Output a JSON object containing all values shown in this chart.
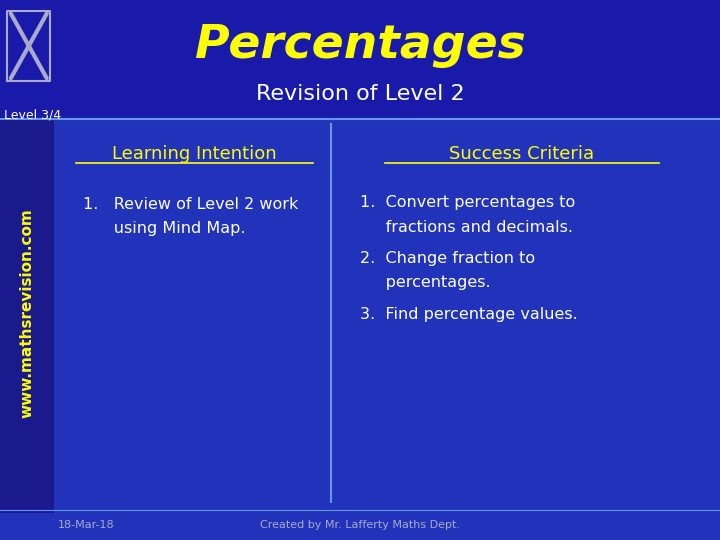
{
  "bg_color": "#1a1a8c",
  "body_bg": "#2233bb",
  "title": "Percentages",
  "subtitle": "Revision of Level 2",
  "level_label": "Level 3/4",
  "title_color": "#ffff00",
  "subtitle_color": "#ffffff",
  "level_color": "#ffffff",
  "left_heading": "Learning Intention",
  "left_heading_color": "#ffff00",
  "left_item_line1": "1.   Review of Level 2 work",
  "left_item_line2": "      using Mind Map.",
  "left_item_color": "#ffffff",
  "right_heading": "Success Criteria",
  "right_heading_color": "#ffff00",
  "right_item1_line1": "1.  Convert percentages to",
  "right_item1_line2": "     fractions and decimals.",
  "right_item2_line1": "2.  Change fraction to",
  "right_item2_line2": "     percentages.",
  "right_item3": "3.  Find percentage values.",
  "right_item_color": "#ffffff",
  "footer_date": "18-Mar-18",
  "footer_credit": "Created by Mr. Lafferty Maths Dept.",
  "footer_color": "#aaaacc",
  "divider_color": "#6699ff",
  "header_line_color": "#6699ff",
  "website_text": "www.mathsrevision.com",
  "website_color": "#ffff00"
}
